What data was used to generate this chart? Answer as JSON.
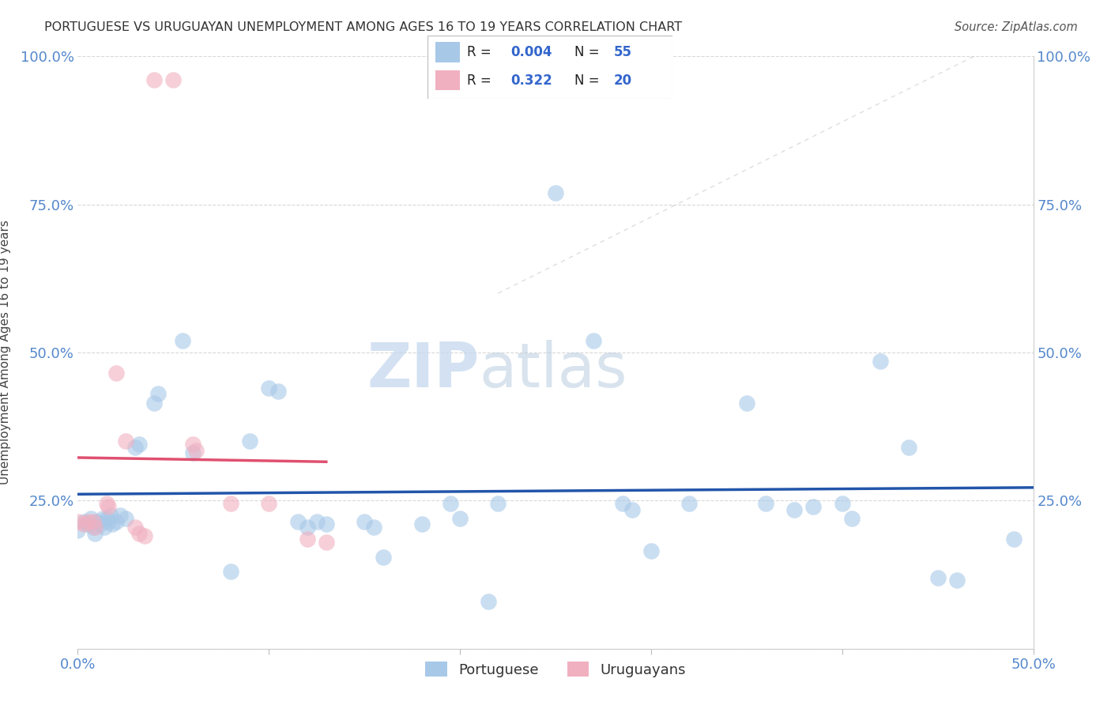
{
  "title": "PORTUGUESE VS URUGUAYAN UNEMPLOYMENT AMONG AGES 16 TO 19 YEARS CORRELATION CHART",
  "source": "Source: ZipAtlas.com",
  "ylabel": "Unemployment Among Ages 16 to 19 years",
  "xlim": [
    0.0,
    0.5
  ],
  "ylim": [
    0.0,
    1.0
  ],
  "watermark_zip": "ZIP",
  "watermark_atlas": "atlas",
  "portuguese_color": "#a8c8e8",
  "uruguayan_color": "#f0b0c0",
  "portuguese_line_color": "#2255aa",
  "uruguayan_line_color": "#e05070",
  "diag_line_color": "#d0d0d0",
  "portuguese_points": [
    [
      0.0,
      0.2
    ],
    [
      0.003,
      0.215
    ],
    [
      0.005,
      0.21
    ],
    [
      0.007,
      0.22
    ],
    [
      0.008,
      0.205
    ],
    [
      0.009,
      0.195
    ],
    [
      0.01,
      0.215
    ],
    [
      0.012,
      0.21
    ],
    [
      0.013,
      0.22
    ],
    [
      0.014,
      0.205
    ],
    [
      0.015,
      0.22
    ],
    [
      0.016,
      0.215
    ],
    [
      0.017,
      0.225
    ],
    [
      0.018,
      0.21
    ],
    [
      0.02,
      0.215
    ],
    [
      0.022,
      0.225
    ],
    [
      0.025,
      0.22
    ],
    [
      0.03,
      0.34
    ],
    [
      0.032,
      0.345
    ],
    [
      0.04,
      0.415
    ],
    [
      0.042,
      0.43
    ],
    [
      0.055,
      0.52
    ],
    [
      0.06,
      0.33
    ],
    [
      0.08,
      0.13
    ],
    [
      0.09,
      0.35
    ],
    [
      0.1,
      0.44
    ],
    [
      0.105,
      0.435
    ],
    [
      0.115,
      0.215
    ],
    [
      0.12,
      0.205
    ],
    [
      0.125,
      0.215
    ],
    [
      0.13,
      0.21
    ],
    [
      0.15,
      0.215
    ],
    [
      0.155,
      0.205
    ],
    [
      0.16,
      0.155
    ],
    [
      0.18,
      0.21
    ],
    [
      0.195,
      0.245
    ],
    [
      0.2,
      0.22
    ],
    [
      0.215,
      0.08
    ],
    [
      0.22,
      0.245
    ],
    [
      0.25,
      0.77
    ],
    [
      0.27,
      0.52
    ],
    [
      0.285,
      0.245
    ],
    [
      0.29,
      0.235
    ],
    [
      0.3,
      0.165
    ],
    [
      0.32,
      0.245
    ],
    [
      0.35,
      0.415
    ],
    [
      0.36,
      0.245
    ],
    [
      0.375,
      0.235
    ],
    [
      0.385,
      0.24
    ],
    [
      0.4,
      0.245
    ],
    [
      0.405,
      0.22
    ],
    [
      0.42,
      0.485
    ],
    [
      0.435,
      0.34
    ],
    [
      0.45,
      0.12
    ],
    [
      0.46,
      0.115
    ],
    [
      0.49,
      0.185
    ]
  ],
  "uruguayan_points": [
    [
      0.0,
      0.215
    ],
    [
      0.003,
      0.21
    ],
    [
      0.005,
      0.215
    ],
    [
      0.008,
      0.215
    ],
    [
      0.009,
      0.205
    ],
    [
      0.015,
      0.245
    ],
    [
      0.016,
      0.24
    ],
    [
      0.02,
      0.465
    ],
    [
      0.025,
      0.35
    ],
    [
      0.03,
      0.205
    ],
    [
      0.032,
      0.195
    ],
    [
      0.035,
      0.19
    ],
    [
      0.04,
      0.96
    ],
    [
      0.05,
      0.96
    ],
    [
      0.06,
      0.345
    ],
    [
      0.062,
      0.335
    ],
    [
      0.08,
      0.245
    ],
    [
      0.1,
      0.245
    ],
    [
      0.12,
      0.185
    ],
    [
      0.13,
      0.18
    ]
  ]
}
